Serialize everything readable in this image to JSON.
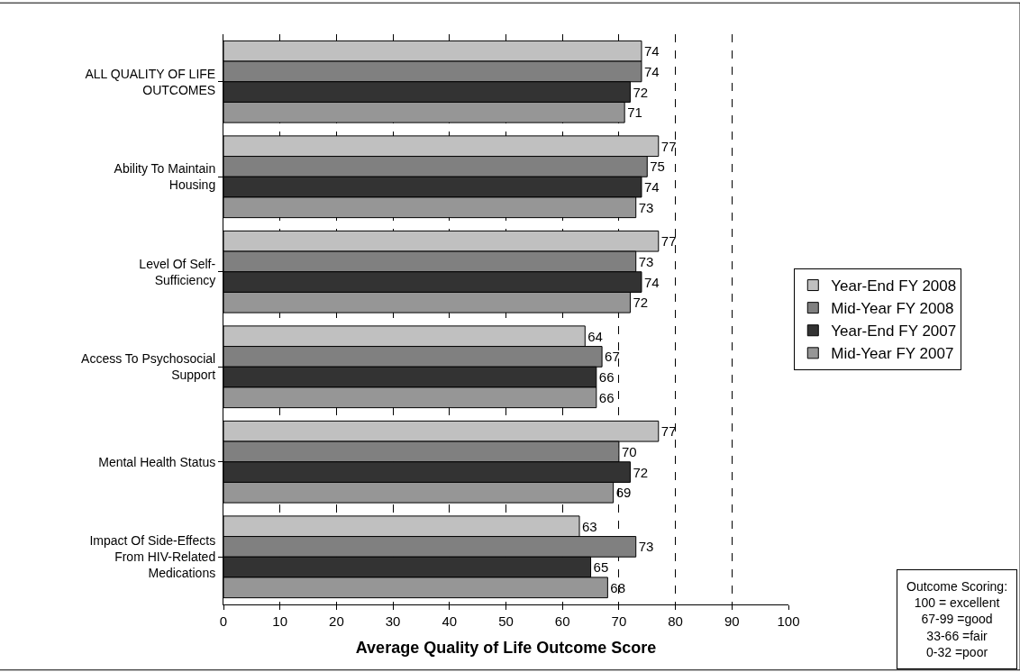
{
  "chart_data": {
    "type": "bar",
    "orientation": "horizontal",
    "xlabel": "Average Quality of Life Outcome Score",
    "categories": [
      "ALL QUALITY OF LIFE OUTCOMES",
      "Ability To Maintain Housing",
      "Level Of Self-Sufficiency",
      "Access To Psychosocial Support",
      "Mental Health Status",
      "Impact Of Side-Effects From HIV-Related Medications"
    ],
    "series": [
      {
        "name": "Year-End FY 2008",
        "color": "#c0c0c0",
        "values": [
          74,
          77,
          77,
          64,
          77,
          63
        ]
      },
      {
        "name": "Mid-Year FY 2008",
        "color": "#808080",
        "values": [
          74,
          75,
          73,
          67,
          70,
          73
        ]
      },
      {
        "name": "Year-End FY 2007",
        "color": "#333333",
        "values": [
          72,
          74,
          74,
          66,
          72,
          65
        ]
      },
      {
        "name": "Mid-Year FY 2007",
        "color": "#969696",
        "values": [
          71,
          73,
          72,
          66,
          69,
          68
        ]
      }
    ],
    "xlim": [
      0,
      100
    ],
    "xticks": [
      0,
      10,
      20,
      30,
      40,
      50,
      60,
      70,
      80,
      90,
      100
    ],
    "grid": "x",
    "legend": "right",
    "data_labels": true,
    "annotations": [
      "Outcome Scoring:\n100 = excellent\n67-99 =good\n33-66 =fair\n0-32 =poor"
    ]
  }
}
